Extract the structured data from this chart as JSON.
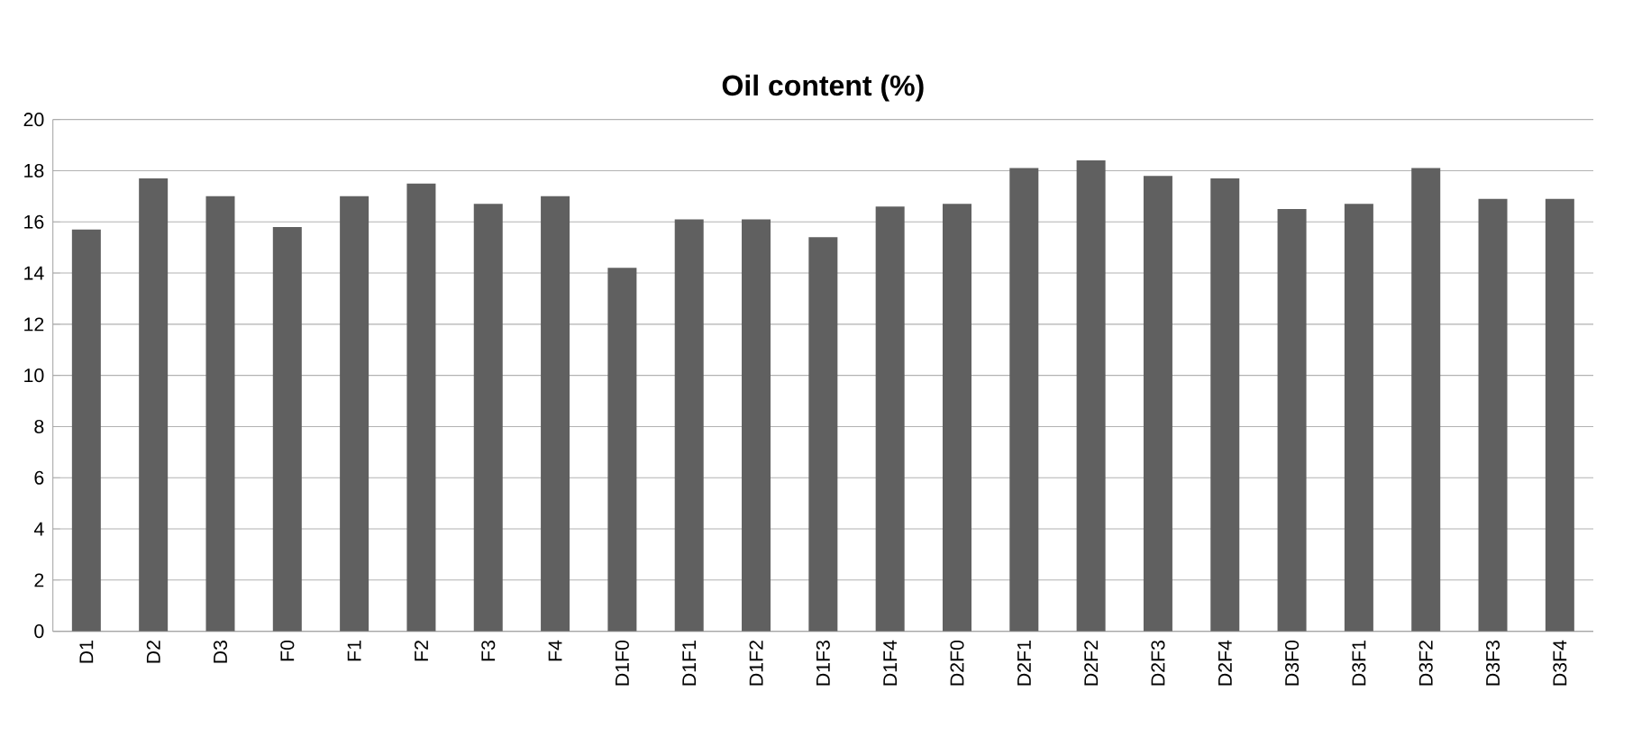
{
  "chart_data": {
    "type": "bar",
    "title": "Oil content (%)",
    "categories": [
      "D1",
      "D2",
      "D3",
      "F0",
      "F1",
      "F2",
      "F3",
      "F4",
      "D1F0",
      "D1F1",
      "D1F2",
      "D1F3",
      "D1F4",
      "D2F0",
      "D2F1",
      "D2F2",
      "D2F3",
      "D2F4",
      "D3F0",
      "D3F1",
      "D3F2",
      "D3F3",
      "D3F4"
    ],
    "values": [
      15.7,
      17.7,
      17.0,
      15.8,
      17.0,
      17.5,
      16.7,
      17.0,
      14.2,
      16.1,
      16.1,
      15.4,
      16.6,
      16.7,
      18.1,
      18.4,
      17.8,
      17.7,
      16.5,
      16.7,
      18.1,
      16.9,
      16.9
    ],
    "color": "#606060",
    "ylim": [
      0,
      20
    ],
    "yticks": [
      0,
      2,
      4,
      6,
      8,
      10,
      12,
      14,
      16,
      18,
      20
    ],
    "grid": "y"
  }
}
